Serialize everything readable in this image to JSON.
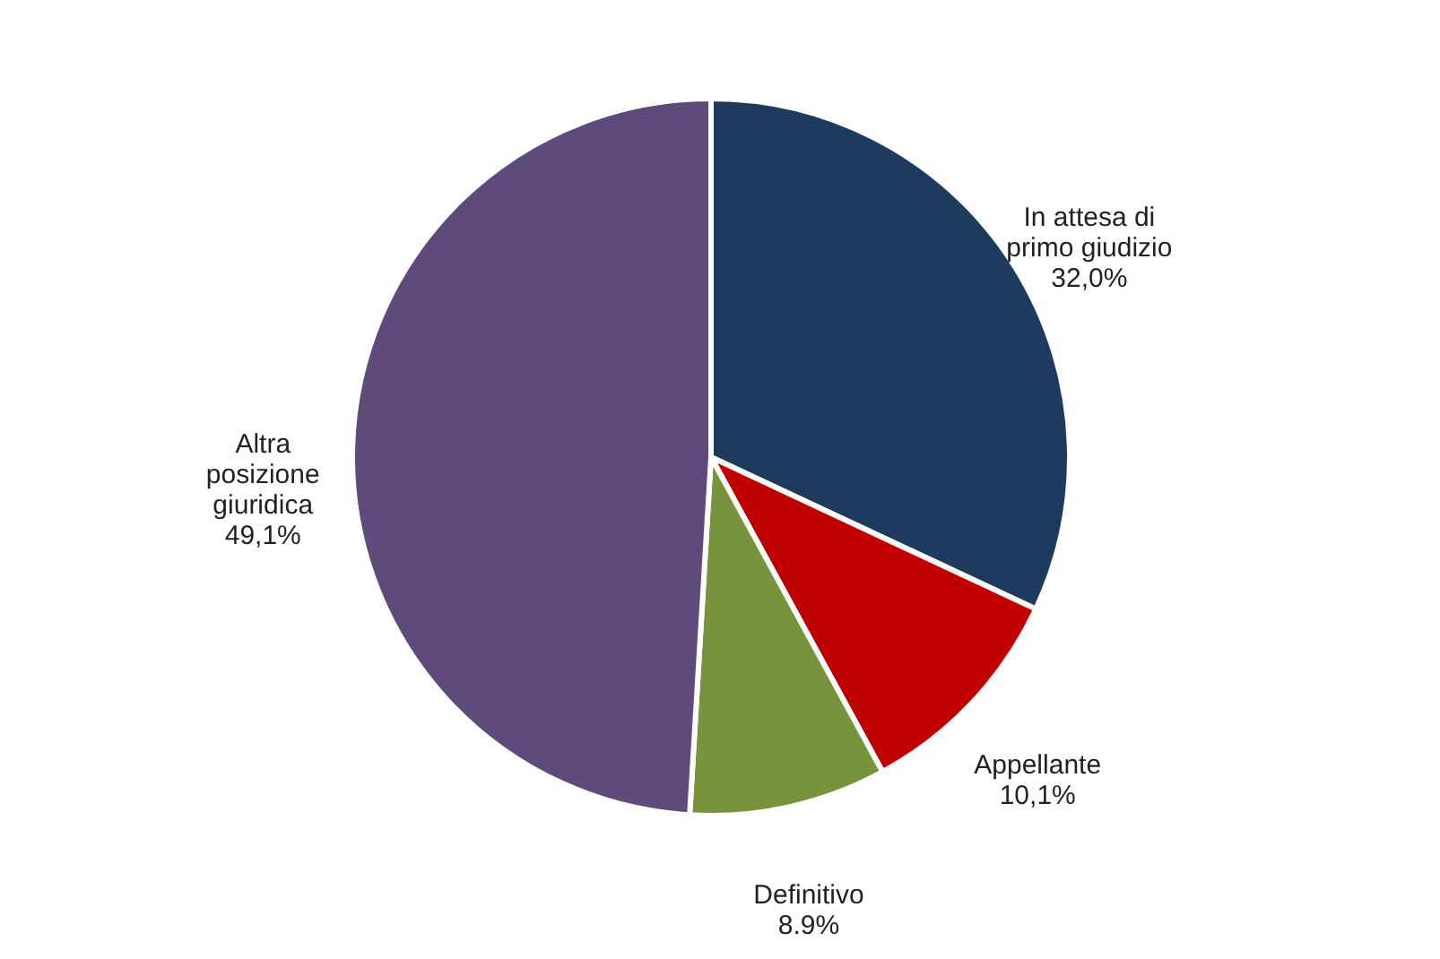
{
  "chart_data": {
    "type": "pie",
    "categories": [
      "In attesa  di\nprimo giudizio",
      "Appellante",
      "Definitivo",
      "Altra\nposizione\ngiuridica"
    ],
    "values": [
      32.0,
      10.1,
      8.9,
      49.1
    ],
    "value_labels": [
      "32,0%",
      "10,1%",
      "8.9%",
      "49,1%"
    ],
    "colors": [
      "#1f3a5f",
      "#c00000",
      "#77933c",
      "#5f4b7b"
    ],
    "legend": false
  }
}
